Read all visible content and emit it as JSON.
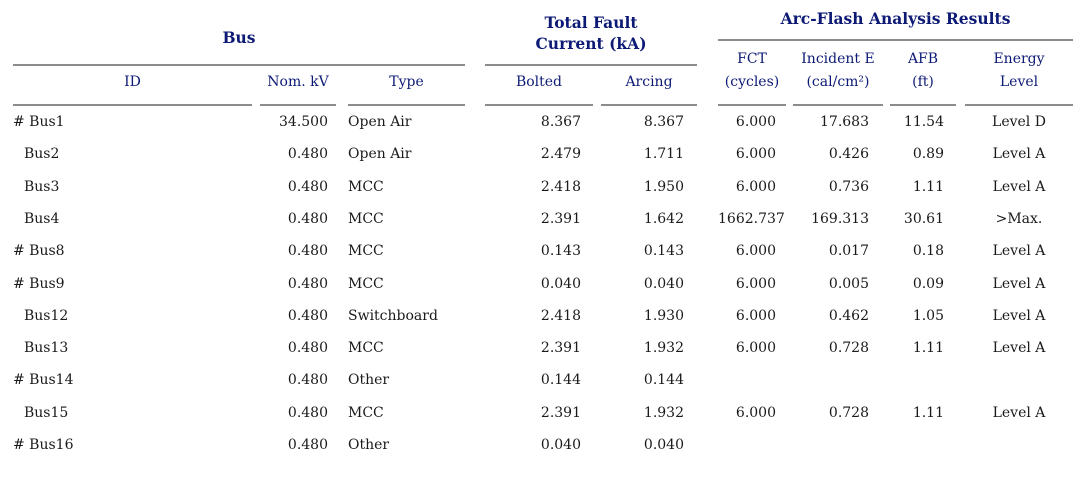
{
  "groups": {
    "bus": "Bus",
    "fault_line1": "Total Fault",
    "fault_line2": "Current (kA)",
    "arc": "Arc-Flash Analysis Results"
  },
  "headers": {
    "id": "ID",
    "nom_kv": "Nom. kV",
    "type": "Type",
    "bolted": "Bolted",
    "arcing": "Arcing",
    "fct_1": "FCT",
    "fct_2": "(cycles)",
    "ie_1": "Incident E",
    "ie_2": "(cal/cm²)",
    "afb_1": "AFB",
    "afb_2": "(ft)",
    "el_1": "Energy",
    "el_2": "Level"
  },
  "rows": [
    {
      "id": "# Bus1",
      "kv": "34.500",
      "type": "Open Air",
      "bolted": "8.367",
      "arcing": "8.367",
      "fct": "6.000",
      "ie": "17.683",
      "afb": "11.54",
      "level": "Level D"
    },
    {
      "id": "Bus2",
      "kv": "0.480",
      "type": "Open Air",
      "bolted": "2.479",
      "arcing": "1.711",
      "fct": "6.000",
      "ie": "0.426",
      "afb": "0.89",
      "level": "Level A"
    },
    {
      "id": "Bus3",
      "kv": "0.480",
      "type": "MCC",
      "bolted": "2.418",
      "arcing": "1.950",
      "fct": "6.000",
      "ie": "0.736",
      "afb": "1.11",
      "level": "Level A"
    },
    {
      "id": "Bus4",
      "kv": "0.480",
      "type": "MCC",
      "bolted": "2.391",
      "arcing": "1.642",
      "fct": "1662.737",
      "ie": "169.313",
      "afb": "30.61",
      "level": ">Max."
    },
    {
      "id": "# Bus8",
      "kv": "0.480",
      "type": "MCC",
      "bolted": "0.143",
      "arcing": "0.143",
      "fct": "6.000",
      "ie": "0.017",
      "afb": "0.18",
      "level": "Level A"
    },
    {
      "id": "# Bus9",
      "kv": "0.480",
      "type": "MCC",
      "bolted": "0.040",
      "arcing": "0.040",
      "fct": "6.000",
      "ie": "0.005",
      "afb": "0.09",
      "level": "Level A"
    },
    {
      "id": "Bus12",
      "kv": "0.480",
      "type": "Switchboard",
      "bolted": "2.418",
      "arcing": "1.930",
      "fct": "6.000",
      "ie": "0.462",
      "afb": "1.05",
      "level": "Level A"
    },
    {
      "id": "Bus13",
      "kv": "0.480",
      "type": "MCC",
      "bolted": "2.391",
      "arcing": "1.932",
      "fct": "6.000",
      "ie": "0.728",
      "afb": "1.11",
      "level": "Level A"
    },
    {
      "id": "# Bus14",
      "kv": "0.480",
      "type": "Other",
      "bolted": "0.144",
      "arcing": "0.144",
      "fct": "",
      "ie": "",
      "afb": "",
      "level": ""
    },
    {
      "id": "Bus15",
      "kv": "0.480",
      "type": "MCC",
      "bolted": "2.391",
      "arcing": "1.932",
      "fct": "6.000",
      "ie": "0.728",
      "afb": "1.11",
      "level": "Level A"
    },
    {
      "id": "# Bus16",
      "kv": "0.480",
      "type": "Other",
      "bolted": "0.040",
      "arcing": "0.040",
      "fct": "",
      "ie": "",
      "afb": "",
      "level": ""
    }
  ]
}
